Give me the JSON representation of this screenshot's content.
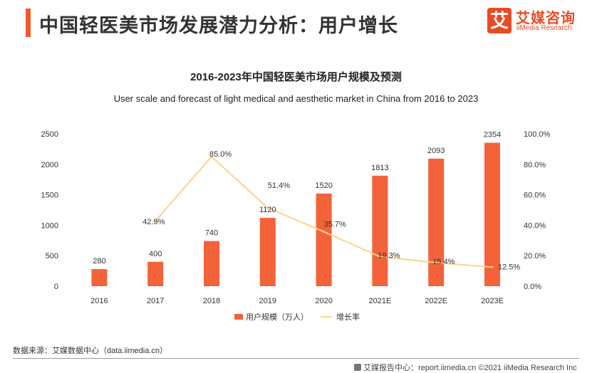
{
  "header": {
    "title": "中国轻医美市场发展潜力分析：用户增长",
    "logo_mark": "艾",
    "logo_cn": "艾媒咨询",
    "logo_en": "iiMedia Research"
  },
  "colors": {
    "accent": "#f05a28",
    "bar": "#f4623a",
    "line": "#fdd38a",
    "brand": "#e84b24"
  },
  "chart_data": {
    "type": "bar",
    "title": "2016-2023年中国轻医美市场用户规模及预测",
    "subtitle": "User scale and forecast of light medical and aesthetic market in China from 2016 to 2023",
    "categories": [
      "2016",
      "2017",
      "2018",
      "2019",
      "2020",
      "2021E",
      "2022E",
      "2023E"
    ],
    "series": [
      {
        "name": "用户规模（万人）",
        "type": "bar",
        "axis": "left",
        "values": [
          280,
          400,
          740,
          1120,
          1520,
          1813,
          2093,
          2354
        ],
        "labels": [
          "280",
          "400",
          "740",
          "1120",
          "1520",
          "1813",
          "2093",
          "2354"
        ]
      },
      {
        "name": "增长率",
        "type": "line",
        "axis": "right",
        "values": [
          null,
          42.9,
          85.0,
          51.4,
          35.7,
          19.3,
          15.4,
          12.5
        ],
        "labels": [
          "",
          "42.9%",
          "85.0%",
          "51.4%",
          "35.7%",
          "19.3%",
          "15.4%",
          "12.5%"
        ]
      }
    ],
    "ylim_left": [
      0,
      2500
    ],
    "yticks_left": [
      "0",
      "500",
      "1000",
      "1500",
      "2000",
      "2500"
    ],
    "ylim_right": [
      0,
      100
    ],
    "yticks_right": [
      "0.0%",
      "20.0%",
      "40.0%",
      "60.0%",
      "80.0%",
      "100.0%"
    ],
    "legend_position": "bottom-center",
    "grid": false
  },
  "footer": {
    "source": "数据来源：艾媒数据中心（data.iimedia.cn）",
    "credit": "艾媒报告中心：report.iimedia.cn ©2021 iiMedia Research Inc"
  }
}
